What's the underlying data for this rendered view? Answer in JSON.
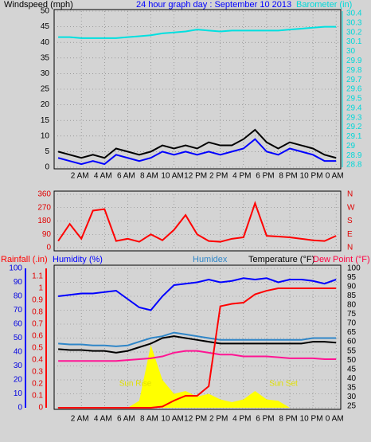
{
  "chart_data": [
    {
      "type": "line",
      "title": "24 hour graph day : September 10 2013",
      "y_label": "Windspeed (mph)",
      "y2_label": "Barometer (in)",
      "x": [
        0,
        1,
        2,
        3,
        4,
        5,
        6,
        7,
        8,
        9,
        10,
        11,
        12,
        13,
        14,
        15,
        16,
        17,
        18,
        19,
        20,
        21,
        22,
        23,
        24
      ],
      "xlim": [
        -0.35,
        24.4
      ],
      "xticks": [
        {
          "value": 2,
          "label": "2 AM"
        },
        {
          "value": 4,
          "label": "4 AM"
        },
        {
          "value": 6,
          "label": "6 AM"
        },
        {
          "value": 8,
          "label": "8 AM"
        },
        {
          "value": 10,
          "label": "10 AM"
        },
        {
          "value": 12,
          "label": "12 PM"
        },
        {
          "value": 14,
          "label": "2 PM"
        },
        {
          "value": 16,
          "label": "4 PM"
        },
        {
          "value": 18,
          "label": "6 PM"
        },
        {
          "value": 20,
          "label": "8 PM"
        },
        {
          "value": 22,
          "label": "10 PM"
        },
        {
          "value": 24,
          "label": "0 AM"
        }
      ],
      "ylim": [
        0,
        50
      ],
      "yticks": [
        0,
        5,
        10,
        15,
        20,
        25,
        30,
        35,
        40,
        45,
        50
      ],
      "y2lim": [
        28.775,
        30.425
      ],
      "y2ticks": [
        28.8,
        28.9,
        29,
        29.1,
        29.2,
        29.3,
        29.4,
        29.5,
        29.6,
        29.7,
        29.8,
        29.9,
        30,
        30.1,
        30.2,
        30.3,
        30.4
      ],
      "grid": true,
      "series": [
        {
          "color": "#000000",
          "values": [
            5,
            4,
            3,
            4,
            3,
            6,
            5,
            4,
            5,
            7,
            6,
            7,
            6,
            8,
            7,
            7,
            9,
            12,
            8,
            6,
            8,
            7,
            6,
            4,
            3
          ]
        },
        {
          "color": "#0000ff",
          "values": [
            3,
            2,
            1,
            2,
            1,
            4,
            3,
            2,
            3,
            5,
            4,
            5,
            4,
            5,
            4,
            5,
            6,
            9,
            5,
            4,
            6,
            5,
            4,
            2,
            2
          ]
        },
        {
          "color": "#00e0e0",
          "axis": "y2",
          "values": [
            30.15,
            30.15,
            30.14,
            30.14,
            30.14,
            30.14,
            30.15,
            30.16,
            30.17,
            30.19,
            30.2,
            30.21,
            30.23,
            30.22,
            30.21,
            30.22,
            30.22,
            30.22,
            30.22,
            30.22,
            30.23,
            30.24,
            30.25,
            30.26,
            30.26
          ]
        }
      ]
    },
    {
      "type": "line",
      "x": [
        0,
        1,
        2,
        3,
        4,
        5,
        6,
        7,
        8,
        9,
        10,
        11,
        12,
        13,
        14,
        15,
        16,
        17,
        18,
        19,
        20,
        21,
        22,
        23,
        24
      ],
      "xlim": [
        -0.35,
        24.4
      ],
      "xticks": [
        {
          "value": 2,
          "label": "2 AM"
        },
        {
          "value": 4,
          "label": "4 AM"
        },
        {
          "value": 6,
          "label": "6 AM"
        },
        {
          "value": 8,
          "label": "8 AM"
        },
        {
          "value": 10,
          "label": "10 AM"
        },
        {
          "value": 12,
          "label": "12 PM"
        },
        {
          "value": 14,
          "label": "2 PM"
        },
        {
          "value": 16,
          "label": "4 PM"
        },
        {
          "value": 18,
          "label": "6 PM"
        },
        {
          "value": 20,
          "label": "8 PM"
        },
        {
          "value": 22,
          "label": "10 PM"
        },
        {
          "value": 24,
          "label": "0 AM"
        }
      ],
      "ylim": [
        0,
        360
      ],
      "yticks": [
        0,
        90,
        180,
        270,
        360
      ],
      "y2lim": [
        0,
        360
      ],
      "y2ticks": [
        {
          "value": 0,
          "label": "N"
        },
        {
          "value": 90,
          "label": "E"
        },
        {
          "value": 180,
          "label": "S"
        },
        {
          "value": 270,
          "label": "W"
        },
        {
          "value": 360,
          "label": "N"
        }
      ],
      "grid": true,
      "series": [
        {
          "color": "#ff0000",
          "values": [
            45,
            160,
            60,
            250,
            260,
            45,
            60,
            40,
            90,
            50,
            120,
            220,
            90,
            45,
            40,
            60,
            70,
            300,
            80,
            75,
            70,
            60,
            50,
            45,
            80
          ]
        }
      ]
    },
    {
      "type": "line",
      "x": [
        0,
        1,
        2,
        3,
        4,
        5,
        6,
        7,
        8,
        9,
        10,
        11,
        12,
        13,
        14,
        15,
        16,
        17,
        18,
        19,
        20,
        21,
        22,
        23,
        24
      ],
      "xlim": [
        -0.35,
        24.4
      ],
      "xticks": [
        {
          "value": 2,
          "label": "2 AM"
        },
        {
          "value": 4,
          "label": "4 AM"
        },
        {
          "value": 6,
          "label": "6 AM"
        },
        {
          "value": 8,
          "label": "8 AM"
        },
        {
          "value": 10,
          "label": "10 AM"
        },
        {
          "value": 12,
          "label": "12 PM"
        },
        {
          "value": 14,
          "label": "2 PM"
        },
        {
          "value": 16,
          "label": "4 PM"
        },
        {
          "value": 18,
          "label": "6 PM"
        },
        {
          "value": 20,
          "label": "8 PM"
        },
        {
          "value": 22,
          "label": "10 PM"
        },
        {
          "value": 24,
          "label": "0 AM"
        }
      ],
      "ylim": [
        0,
        100
      ],
      "yticks": [
        0,
        10,
        20,
        30,
        40,
        50,
        60,
        70,
        80,
        90,
        100
      ],
      "y2lim": [
        24,
        100
      ],
      "y2ticks": [
        25,
        30,
        35,
        40,
        45,
        50,
        55,
        60,
        65,
        70,
        75,
        80,
        85,
        90,
        95,
        100
      ],
      "y3lim": [
        0,
        1.167
      ],
      "y3ticks": [
        0,
        0.1,
        0.2,
        0.3,
        0.4,
        0.5,
        0.6,
        0.7,
        0.8,
        0.9,
        1,
        1.1
      ],
      "grid": true,
      "solar": {
        "color": "#ffff00",
        "values": [
          0,
          0,
          0,
          0,
          0,
          0,
          0,
          5,
          45,
          20,
          10,
          12,
          8,
          10,
          6,
          4,
          6,
          12,
          6,
          5,
          0,
          0,
          0,
          0,
          0
        ]
      },
      "annotations": [
        "Sun Rise",
        "Sun Set"
      ],
      "series": [
        {
          "name": "Humidity (%)",
          "color": "#0000ff",
          "values": [
            80,
            81,
            82,
            82,
            83,
            84,
            78,
            72,
            70,
            80,
            88,
            89,
            90,
            92,
            90,
            91,
            93,
            92,
            93,
            90,
            92,
            92,
            91,
            89,
            92
          ]
        },
        {
          "name": "Humidex",
          "color": "#2f86c8",
          "axis": "y2",
          "values": [
            59,
            58.5,
            58.5,
            58,
            58,
            57.5,
            58,
            60,
            62,
            63,
            65,
            64,
            63,
            62,
            61,
            61,
            61,
            61,
            61,
            61,
            61,
            61,
            62,
            62,
            62
          ]
        },
        {
          "name": "Temperature (°F)",
          "color": "#000000",
          "axis": "y2",
          "values": [
            56,
            55.5,
            55.5,
            55,
            55,
            54,
            55,
            57,
            59,
            62,
            63,
            62,
            61,
            60,
            59,
            59,
            59,
            59,
            59,
            59,
            59,
            59,
            60,
            60,
            59.5
          ]
        },
        {
          "name": "Dew Point (°F)",
          "color": "#ff1493",
          "axis": "y2",
          "values": [
            49.5,
            49.5,
            49.5,
            49.5,
            49.5,
            49.5,
            50,
            50.5,
            51,
            52,
            54,
            55,
            55,
            54,
            53,
            53,
            52,
            52,
            52,
            51.5,
            51,
            51,
            51,
            50.5,
            50.5
          ]
        },
        {
          "name": "Rainfall (.in)",
          "color": "#ff0000",
          "axis": "y3",
          "values": [
            0,
            0,
            0,
            0,
            0,
            0,
            0,
            0,
            0,
            0.01,
            0.06,
            0.1,
            0.1,
            0.18,
            0.85,
            0.87,
            0.88,
            0.95,
            0.98,
            1,
            1,
            1,
            1,
            1,
            1
          ]
        }
      ]
    }
  ]
}
